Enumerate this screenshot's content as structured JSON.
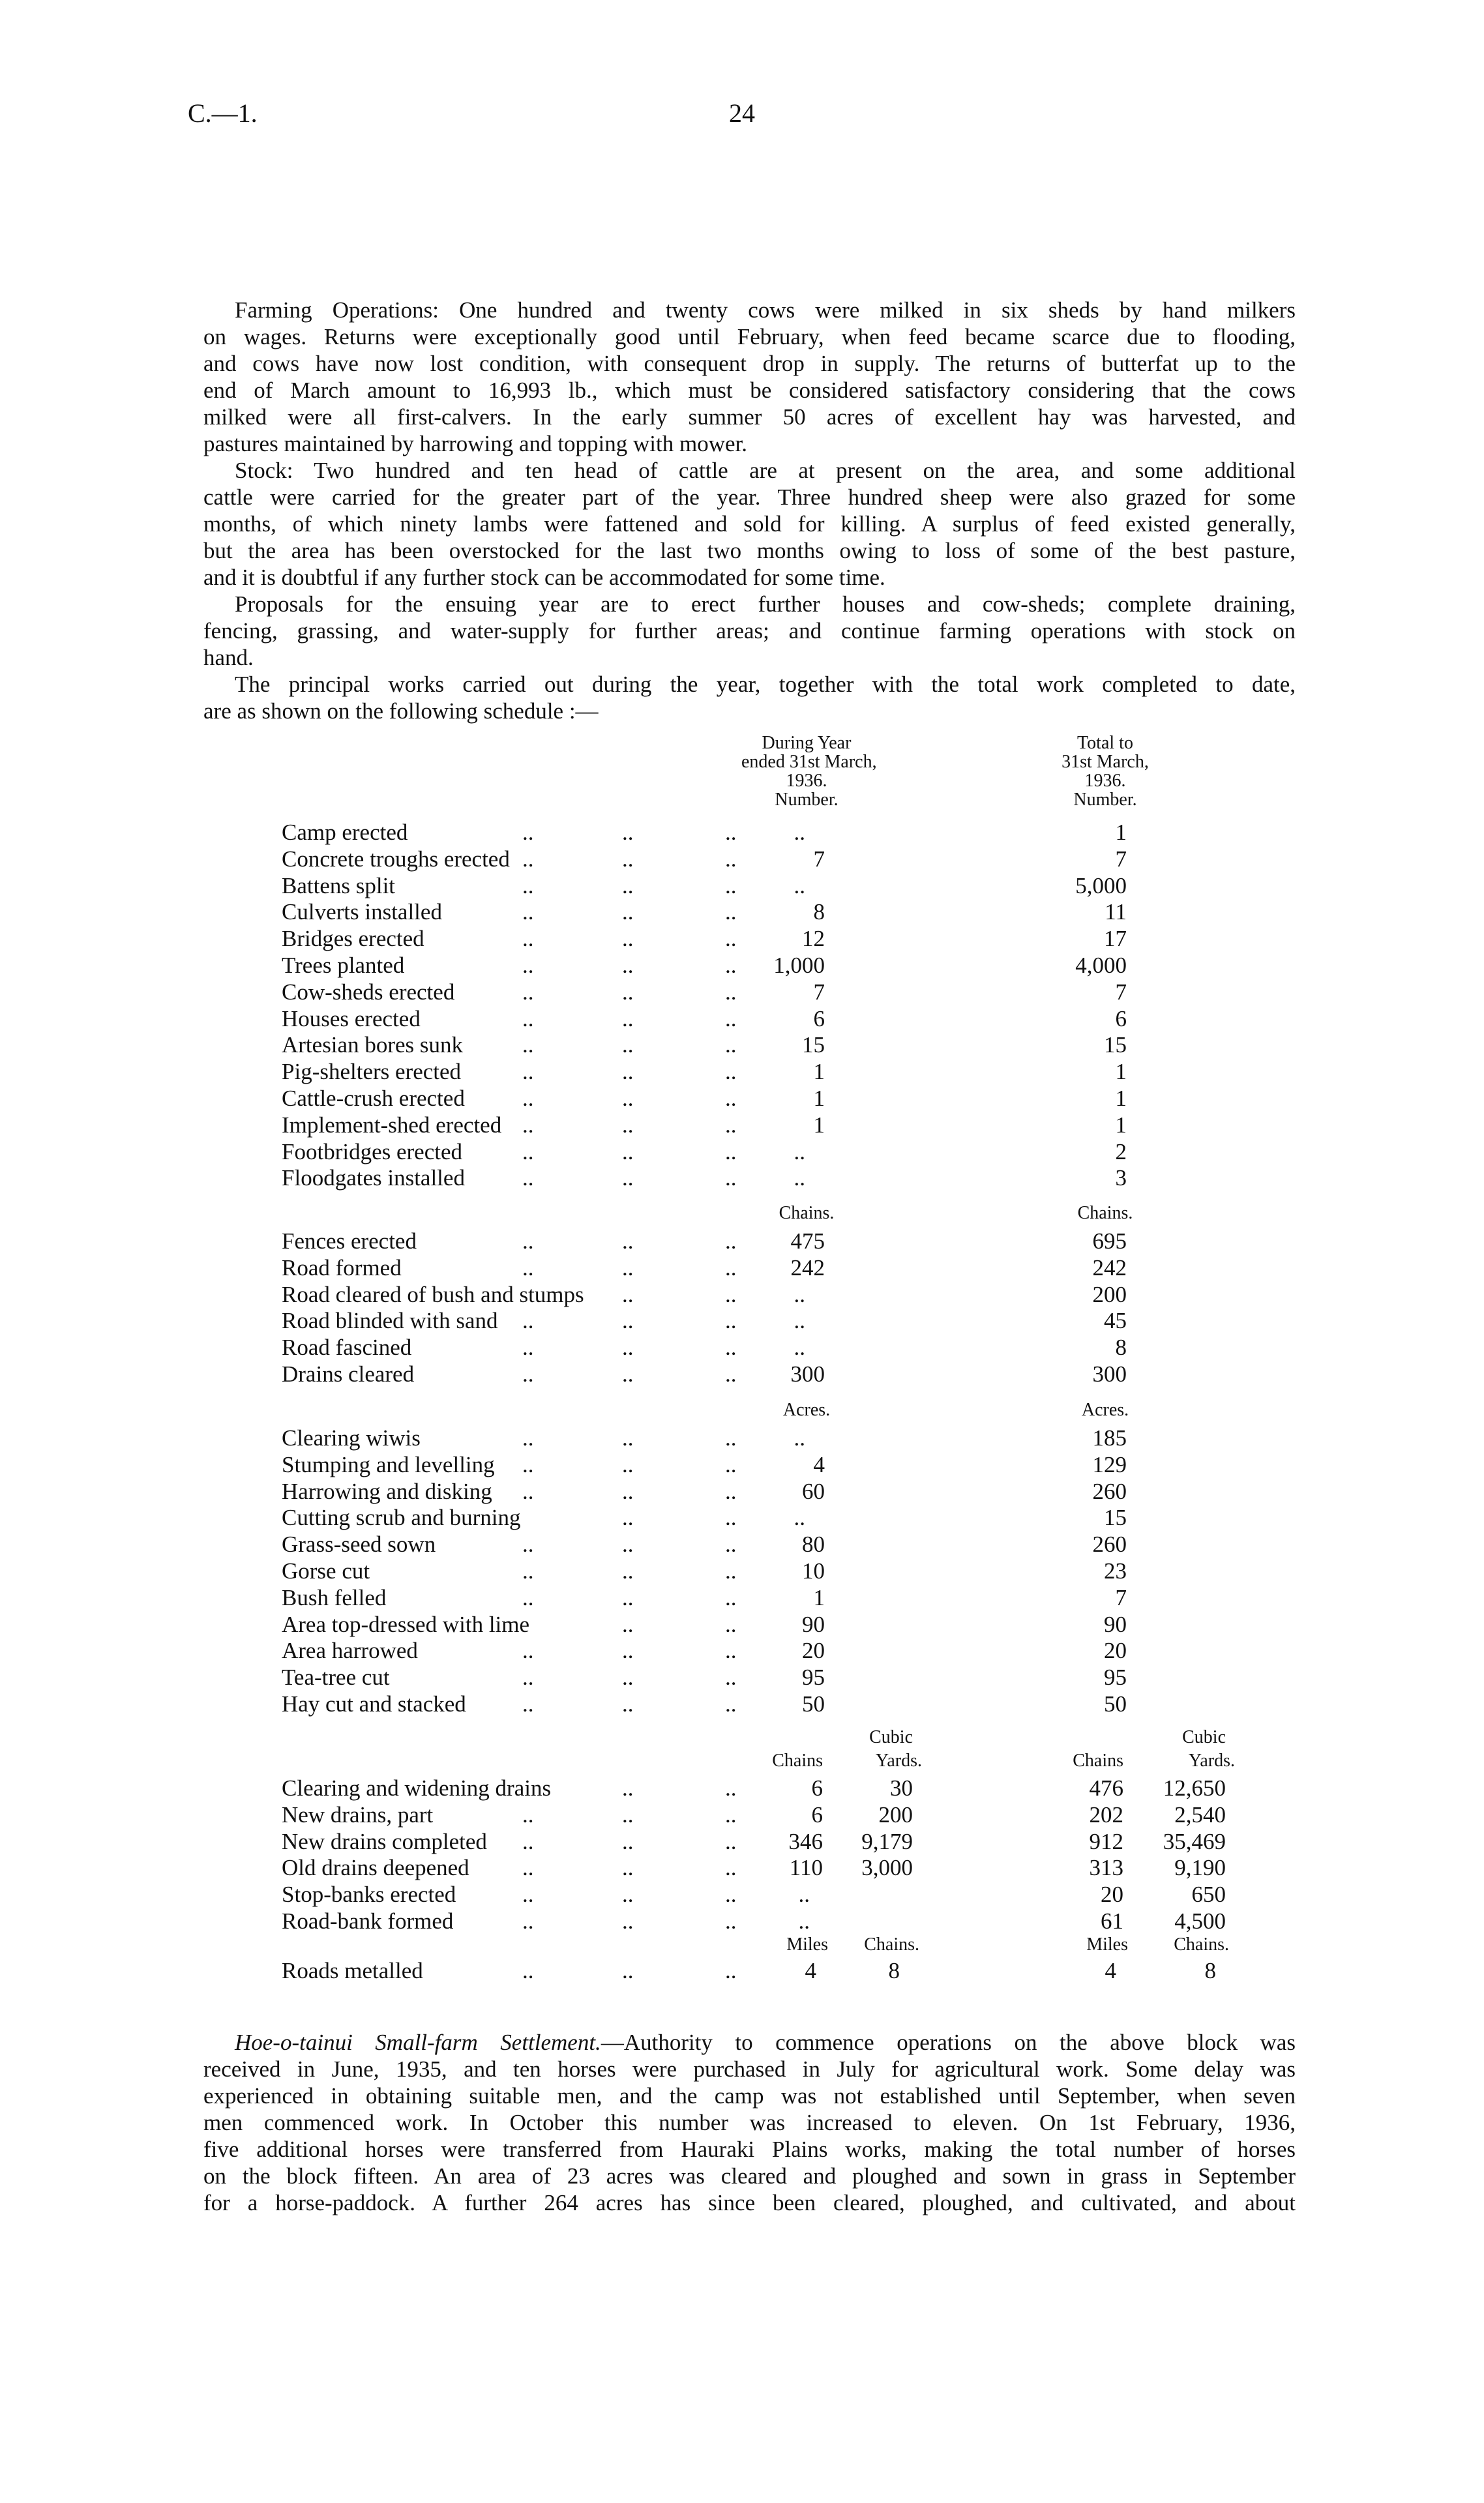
{
  "header": {
    "ref": "C.—1.",
    "page": "24"
  },
  "intro_paragraphs": [
    {
      "lines": [
        "Farming Operations: One hundred and twenty cows were milked in six sheds by hand milkers",
        "on wages. Returns were exceptionally good until February, when feed became scarce due to flooding,",
        "and cows have now lost condition, with consequent drop in supply. The returns of butterfat up to the",
        "end of March amount to 16,993 lb., which must be considered satisfactory considering that the cows",
        "milked were all first-calvers. In the early summer 50 acres of excellent hay was harvested, and",
        "pastures maintained by harrowing and topping with mower."
      ]
    },
    {
      "lines": [
        "Stock: Two hundred and ten head of cattle are at present on the area, and some additional",
        "cattle were carried for the greater part of the year. Three hundred sheep were also grazed for some",
        "months, of which ninety lambs were fattened and sold for killing. A surplus of feed existed generally,",
        "but the area has been overstocked for the last two months owing to loss of some of the best pasture,",
        "and it is doubtful if any further stock can be accommodated for some time."
      ]
    },
    {
      "lines": [
        "Proposals for the ensuing year are to erect further houses and cow-sheds; complete draining,",
        "fencing, grassing, and water-supply for further areas; and continue farming operations with stock on",
        "hand."
      ]
    },
    {
      "lines": [
        "The principal works carried out during the year, together with the total work completed to date,",
        "are as shown on the following schedule :—"
      ]
    }
  ],
  "schedule": {
    "col_during": [
      "During Year",
      "ended 31st March,",
      "1936."
    ],
    "col_total": [
      "Total to",
      "31st March,",
      "1936."
    ],
    "leader": "..",
    "sections": [
      {
        "unit_during": "Number.",
        "unit_total": "Number.",
        "rows": [
          {
            "label": "Camp erected",
            "during": "..",
            "total": "1"
          },
          {
            "label": "Concrete troughs erected",
            "during": "7",
            "total": "7"
          },
          {
            "label": "Battens split",
            "during": "..",
            "total": "5,000"
          },
          {
            "label": "Culverts installed",
            "during": "8",
            "total": "11"
          },
          {
            "label": "Bridges erected",
            "during": "12",
            "total": "17"
          },
          {
            "label": "Trees planted",
            "during": "1,000",
            "total": "4,000"
          },
          {
            "label": "Cow-sheds erected",
            "during": "7",
            "total": "7"
          },
          {
            "label": "Houses erected",
            "during": "6",
            "total": "6"
          },
          {
            "label": "Artesian bores sunk",
            "during": "15",
            "total": "15"
          },
          {
            "label": "Pig-shelters erected",
            "during": "1",
            "total": "1"
          },
          {
            "label": "Cattle-crush erected",
            "during": "1",
            "total": "1"
          },
          {
            "label": "Implement-shed erected",
            "during": "1",
            "total": "1"
          },
          {
            "label": "Footbridges erected",
            "during": "..",
            "total": "2"
          },
          {
            "label": "Floodgates installed",
            "during": "..",
            "total": "3"
          }
        ]
      },
      {
        "unit_during": "Chains.",
        "unit_total": "Chains.",
        "rows": [
          {
            "label": "Fences erected",
            "during": "475",
            "total": "695"
          },
          {
            "label": "Road formed",
            "during": "242",
            "total": "242"
          },
          {
            "label": "Road cleared of bush and stumps",
            "during": "..",
            "total": "200"
          },
          {
            "label": "Road blinded with sand",
            "during": "..",
            "total": "45"
          },
          {
            "label": "Road fascined",
            "during": "..",
            "total": "8"
          },
          {
            "label": "Drains cleared",
            "during": "300",
            "total": "300"
          }
        ]
      },
      {
        "unit_during": "Acres.",
        "unit_total": "Acres.",
        "rows": [
          {
            "label": "Clearing wiwis",
            "during": "..",
            "total": "185"
          },
          {
            "label": "Stumping and levelling",
            "during": "4",
            "total": "129"
          },
          {
            "label": "Harrowing and disking",
            "during": "60",
            "total": "260"
          },
          {
            "label": "Cutting scrub and burning",
            "during": "..",
            "total": "15"
          },
          {
            "label": "Grass-seed sown",
            "during": "80",
            "total": "260"
          },
          {
            "label": "Gorse cut",
            "during": "10",
            "total": "23"
          },
          {
            "label": "Bush felled",
            "during": "1",
            "total": "7"
          },
          {
            "label": "Area top-dressed with lime",
            "during": "90",
            "total": "90"
          },
          {
            "label": "Area harrowed",
            "during": "20",
            "total": "20"
          },
          {
            "label": "Tea-tree cut",
            "during": "95",
            "total": "95"
          },
          {
            "label": "Hay cut and stacked",
            "during": "50",
            "total": "50"
          }
        ]
      }
    ],
    "drains": {
      "units": [
        "Chains",
        "Cubic",
        "Yards."
      ],
      "rows": [
        {
          "label": "Clearing and widening drains",
          "d1": "6",
          "d2": "30",
          "t1": "476",
          "t2": "12,650"
        },
        {
          "label": "New drains, part",
          "d1": "6",
          "d2": "200",
          "t1": "202",
          "t2": "2,540"
        },
        {
          "label": "New drains completed",
          "d1": "346",
          "d2": "9,179",
          "t1": "912",
          "t2": "35,469"
        },
        {
          "label": "Old drains deepened",
          "d1": "110",
          "d2": "3,000",
          "t1": "313",
          "t2": "9,190"
        },
        {
          "label": "Stop-banks erected",
          "d1": "..",
          "d2": "",
          "t1": "20",
          "t2": "650"
        },
        {
          "label": "Road-bank formed",
          "d1": "..",
          "d2": "",
          "t1": "61",
          "t2": "4,500"
        }
      ]
    },
    "roads": {
      "units": [
        "Miles",
        "Chains."
      ],
      "row": {
        "label": "Roads metalled",
        "d1": "4",
        "d2": "8",
        "t1": "4",
        "t2": "8"
      }
    }
  },
  "closing_paragraph": {
    "italic_title": "Hoe-o-tainui Small-farm Settlement.",
    "lines": [
      "—Authority to commence operations on the above block was",
      "received in June, 1935, and ten horses were purchased in July for agricultural work. Some delay was",
      "experienced in obtaining suitable men, and the camp was not established until September, when seven",
      "men commenced work. In October this number was increased to eleven. On 1st February, 1936,",
      "five additional horses were transferred from Hauraki Plains works, making the total number of horses",
      "on the block fifteen. An area of 23 acres was cleared and ploughed and sown in grass in September",
      "for a horse-paddock. A further 264 acres has since been cleared, ploughed, and cultivated, and about"
    ]
  }
}
